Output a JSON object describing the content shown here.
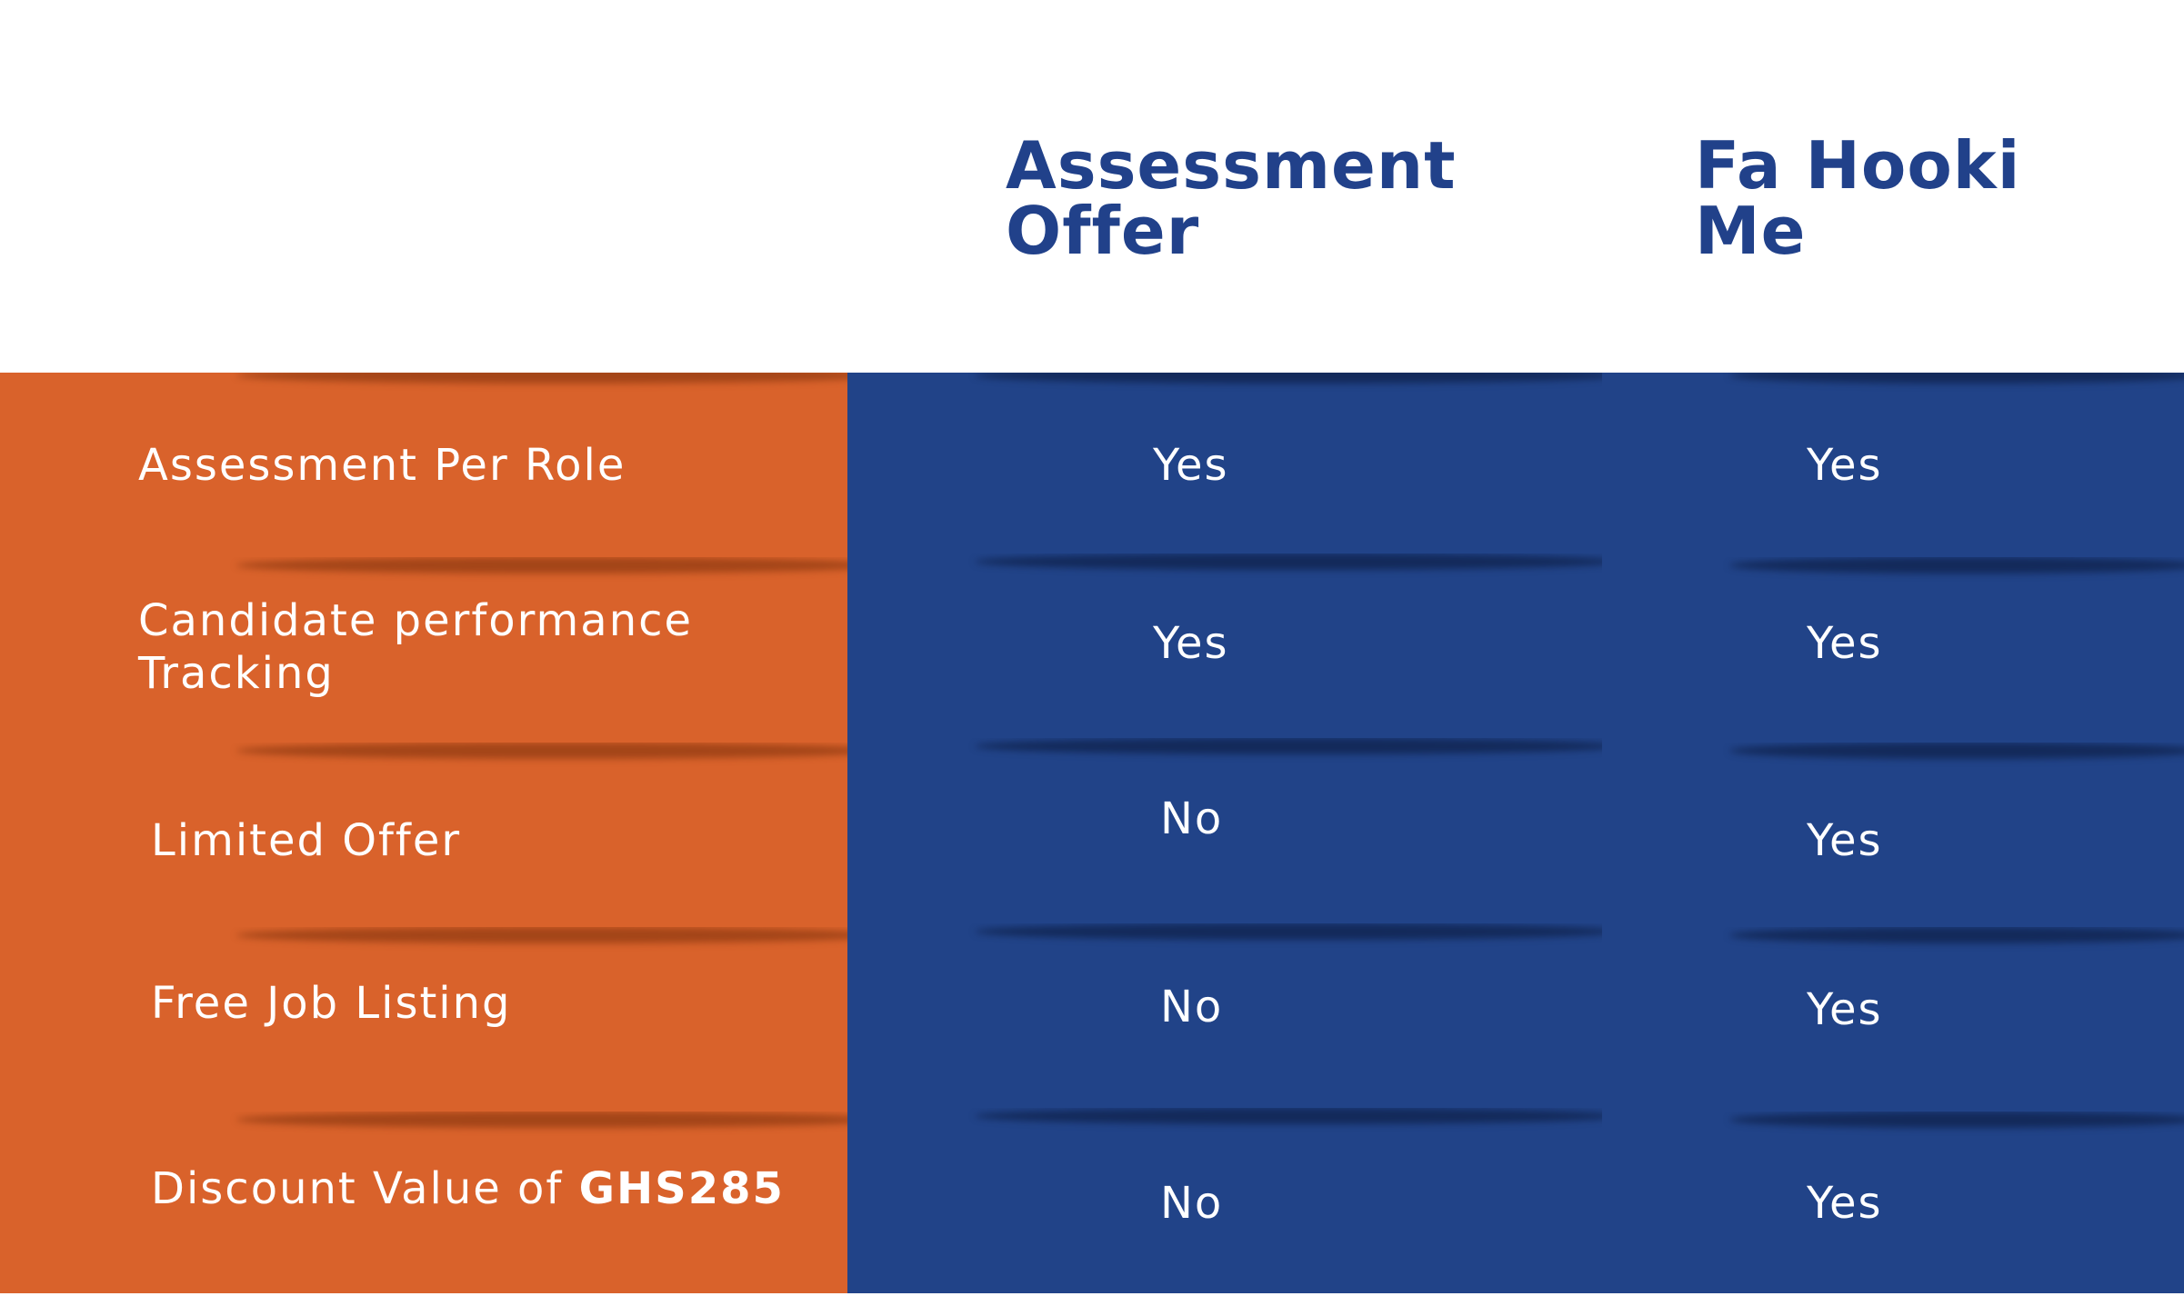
{
  "columns": [
    {
      "line1": "Assessment",
      "line2": "Offer"
    },
    {
      "line1": "Fa Hooki",
      "line2": "Me"
    }
  ],
  "rows": [
    {
      "feature": "Assessment Per Role",
      "assessment_offer": "Yes",
      "fa_hooki_me": "Yes"
    },
    {
      "feature_line1": "Candidate performance",
      "feature_line2": "Tracking",
      "assessment_offer": "Yes",
      "fa_hooki_me": "Yes"
    },
    {
      "feature": "Limited Offer",
      "assessment_offer": "No",
      "fa_hooki_me": "Yes"
    },
    {
      "feature": "Free Job Listing",
      "assessment_offer": "No",
      "fa_hooki_me": "Yes"
    },
    {
      "feature_prefix": "Discount Value of ",
      "feature_bold": "GHS285",
      "assessment_offer": "No",
      "fa_hooki_me": "Yes"
    }
  ],
  "colors": {
    "header_text": "#21418a",
    "feature_column": "#d9622b",
    "value_columns": "#214388",
    "cell_text": "#ffffff"
  }
}
